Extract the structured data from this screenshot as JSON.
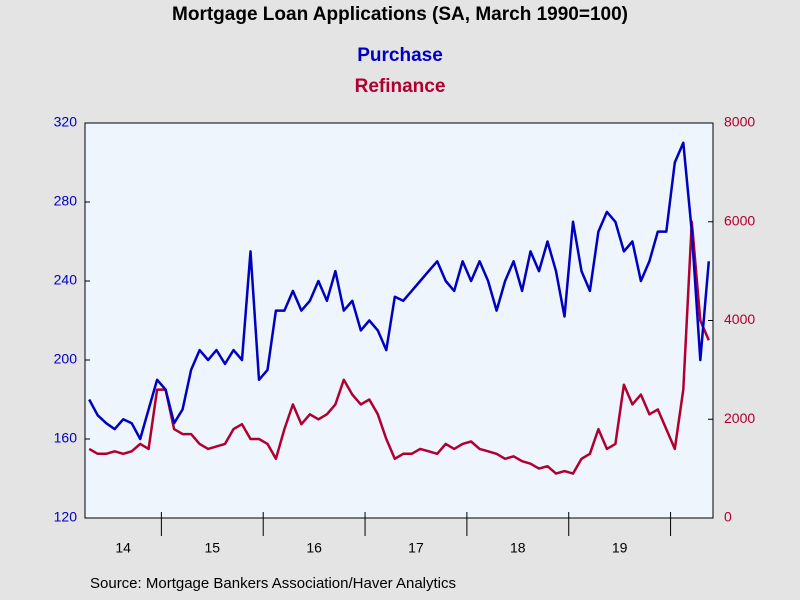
{
  "chart_data": {
    "type": "line",
    "title": "Mortgage Loan Applications (SA, March 1990=100)",
    "source": "Source:  Mortgage Bankers Association/Haver Analytics",
    "categories": [
      "14",
      null,
      null,
      null,
      null,
      null,
      null,
      null,
      null,
      "15",
      null,
      null,
      null,
      null,
      null,
      null,
      null,
      null,
      null,
      null,
      null,
      "16",
      null,
      null,
      null,
      null,
      null,
      null,
      null,
      null,
      null,
      null,
      null,
      "17",
      null,
      null,
      null,
      null,
      null,
      null,
      null,
      null,
      null,
      null,
      null,
      "18",
      null,
      null,
      null,
      null,
      null,
      null,
      null,
      null,
      null,
      null,
      null,
      "19",
      null,
      null,
      null,
      null,
      null,
      null,
      null,
      null,
      null,
      null,
      null,
      null,
      null,
      null,
      null,
      null
    ],
    "series": [
      {
        "name": "Purchase",
        "color": "#0000c0",
        "axis": "y",
        "values": [
          180,
          172,
          168,
          165,
          170,
          168,
          160,
          175,
          190,
          185,
          168,
          175,
          195,
          205,
          200,
          205,
          198,
          205,
          200,
          255,
          190,
          195,
          225,
          225,
          235,
          225,
          230,
          240,
          230,
          245,
          225,
          230,
          215,
          220,
          215,
          205,
          232,
          230,
          235,
          240,
          245,
          250,
          240,
          235,
          250,
          240,
          250,
          240,
          225,
          240,
          250,
          235,
          255,
          245,
          260,
          245,
          222,
          270,
          245,
          235,
          265,
          275,
          270,
          255,
          260,
          240,
          250,
          265,
          265,
          300,
          310,
          265,
          200,
          250
        ]
      },
      {
        "name": "Refinance",
        "color": "#b00030",
        "axis": "y2",
        "values": [
          1400,
          1300,
          1300,
          1350,
          1300,
          1350,
          1500,
          1400,
          2600,
          2600,
          1800,
          1700,
          1700,
          1500,
          1400,
          1450,
          1500,
          1800,
          1900,
          1600,
          1600,
          1500,
          1200,
          1800,
          2300,
          1900,
          2100,
          2000,
          2100,
          2300,
          2800,
          2500,
          2300,
          2400,
          2100,
          1600,
          1200,
          1300,
          1300,
          1400,
          1350,
          1300,
          1500,
          1400,
          1500,
          1550,
          1400,
          1350,
          1300,
          1200,
          1250,
          1150,
          1100,
          1000,
          1050,
          900,
          950,
          900,
          1200,
          1300,
          1800,
          1400,
          1500,
          2700,
          2300,
          2500,
          2100,
          2200,
          1800,
          1400,
          2600,
          6000,
          4000,
          3600
        ]
      }
    ],
    "ylim": [
      120,
      320
    ],
    "yticks": [
      120,
      160,
      200,
      240,
      280,
      320
    ],
    "y2lim": [
      0,
      8000
    ],
    "y2ticks": [
      0,
      2000,
      4000,
      6000,
      8000
    ],
    "grid": false
  }
}
